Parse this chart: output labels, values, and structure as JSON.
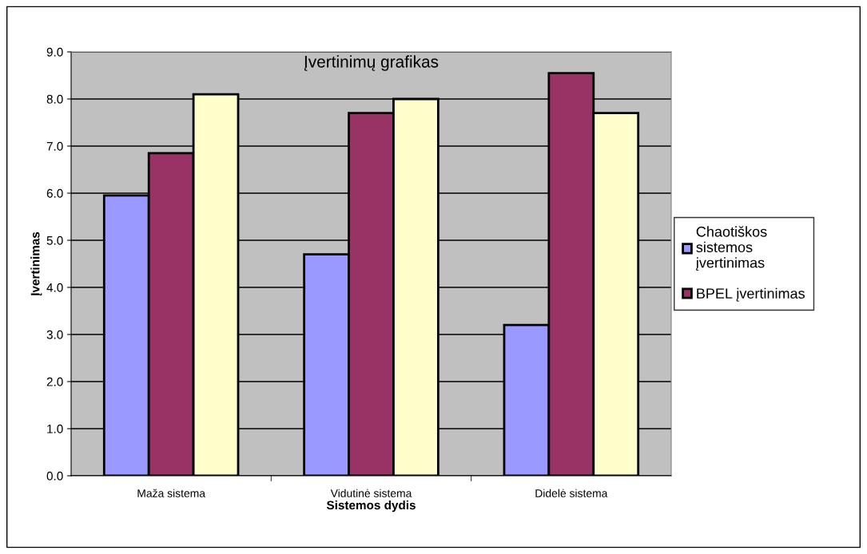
{
  "chart_data": {
    "type": "bar",
    "title": "Įvertinimų grafikas",
    "xlabel": "Sistemos dydis",
    "ylabel": "Įvertinimas",
    "categories": [
      "Maža sistema",
      "Vidutinė sistema",
      "Didelė sistema"
    ],
    "series": [
      {
        "name": "Chaotiškos\nsistemos\nįvertinimas",
        "color": "#9999ff",
        "values": [
          5.95,
          4.7,
          3.2
        ]
      },
      {
        "name": "BPEL įvertinimas",
        "color": "#993366",
        "values": [
          6.85,
          7.7,
          8.55
        ]
      },
      {
        "color": "#ffffcc",
        "values": [
          8.1,
          8.0,
          7.7
        ]
      }
    ],
    "ylim": [
      0,
      9
    ],
    "yticks": [
      {
        "value": 0,
        "label": "0.0"
      },
      {
        "value": 1,
        "label": "1.0"
      },
      {
        "value": 2,
        "label": "2.0"
      },
      {
        "value": 3,
        "label": "3.0"
      },
      {
        "value": 4,
        "label": "4.0"
      },
      {
        "value": 5,
        "label": "5.0"
      },
      {
        "value": 6,
        "label": "6.0"
      },
      {
        "value": 7,
        "label": "7.0"
      },
      {
        "value": 8,
        "label": "8.0"
      },
      {
        "value": 9,
        "label": "9.0"
      }
    ],
    "grid": "y",
    "legend": "right"
  }
}
